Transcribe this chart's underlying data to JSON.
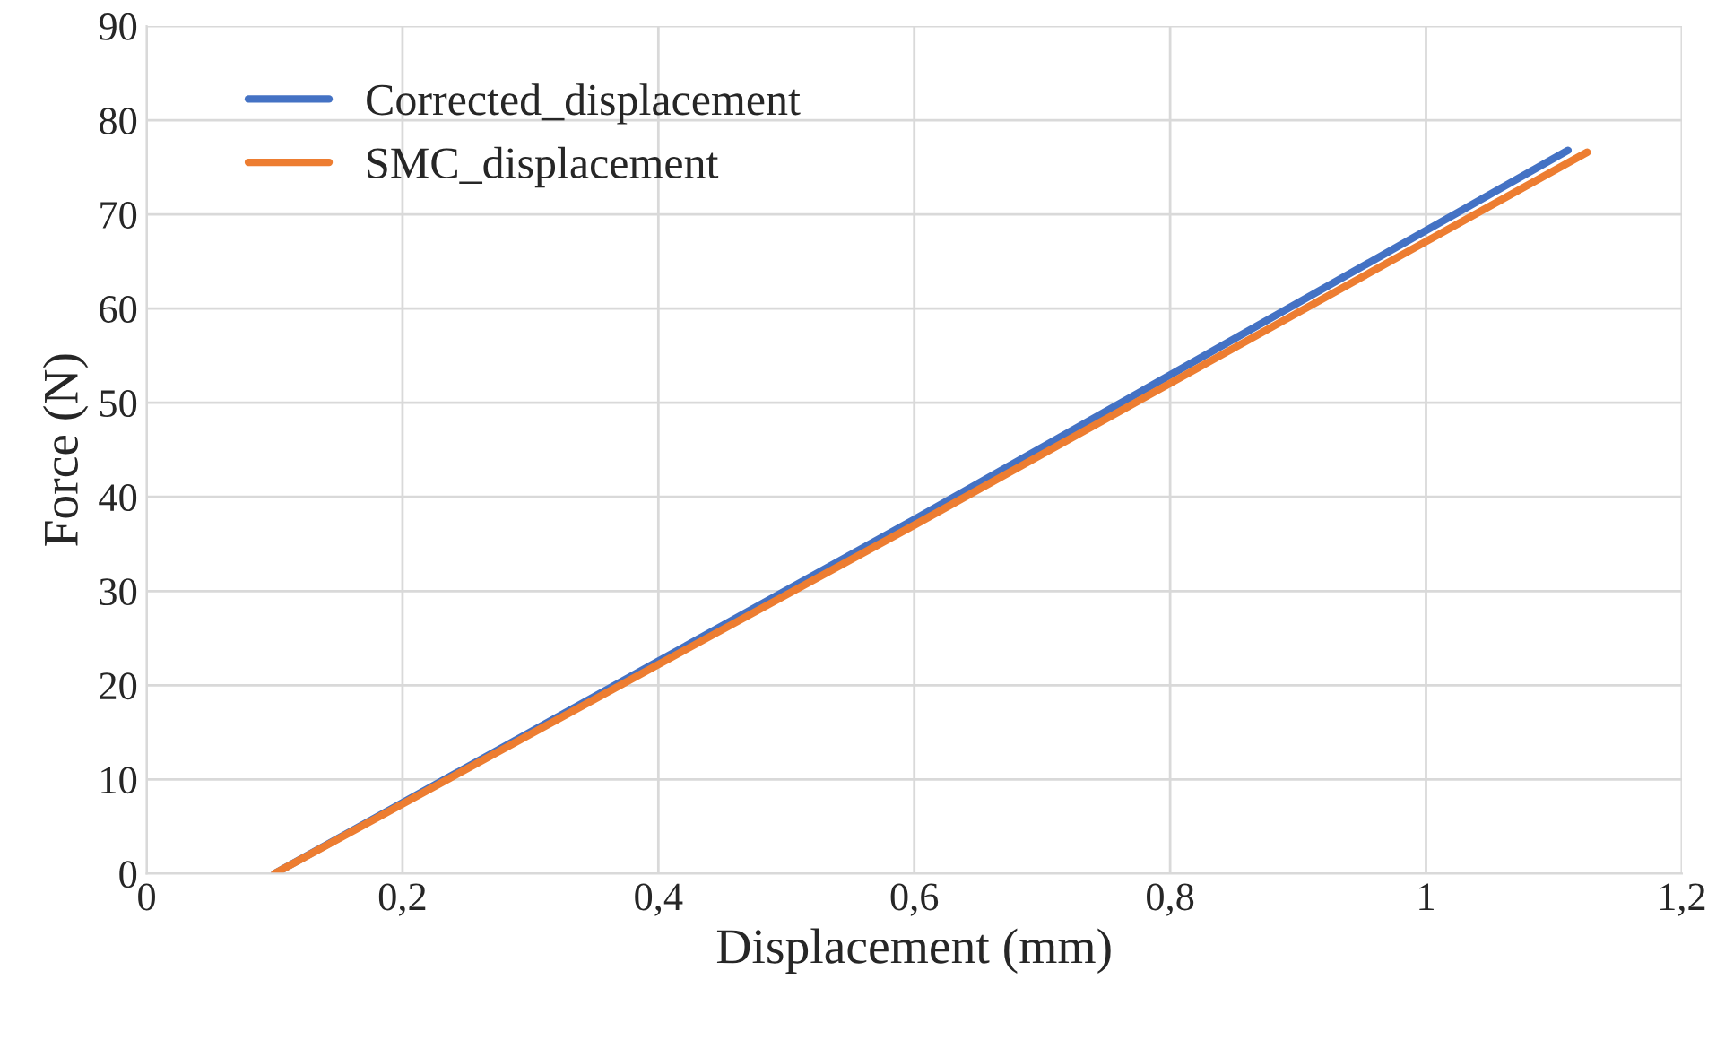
{
  "chart_data": {
    "type": "line",
    "xlabel": "Displacement (mm)",
    "ylabel": "Force (N)",
    "series": [
      {
        "name": "Corrected_displacement",
        "color": "#4472c4",
        "x": [
          0.1,
          0.6,
          1.111
        ],
        "values": [
          0,
          37.6,
          76.8
        ]
      },
      {
        "name": "SMC_displacement",
        "color": "#ed7d31",
        "x": [
          0.1,
          0.6,
          1.126
        ],
        "values": [
          0,
          37.0,
          76.6
        ]
      }
    ],
    "xlim": [
      0,
      1.2
    ],
    "xticks": [
      0,
      {
        "value": 0.2,
        "label": "0,2"
      },
      {
        "value": 0.4,
        "label": "0,4"
      },
      {
        "value": 0.6,
        "label": "0,6"
      },
      {
        "value": 0.8,
        "label": "0,8"
      },
      1,
      {
        "value": 1.2,
        "label": "1,2"
      }
    ],
    "ylim": [
      0,
      90
    ],
    "yticks": [
      0,
      10,
      20,
      30,
      40,
      50,
      60,
      70,
      80,
      90
    ],
    "grid": true,
    "legend": "top left",
    "marker": "none",
    "line_style": "solid"
  }
}
